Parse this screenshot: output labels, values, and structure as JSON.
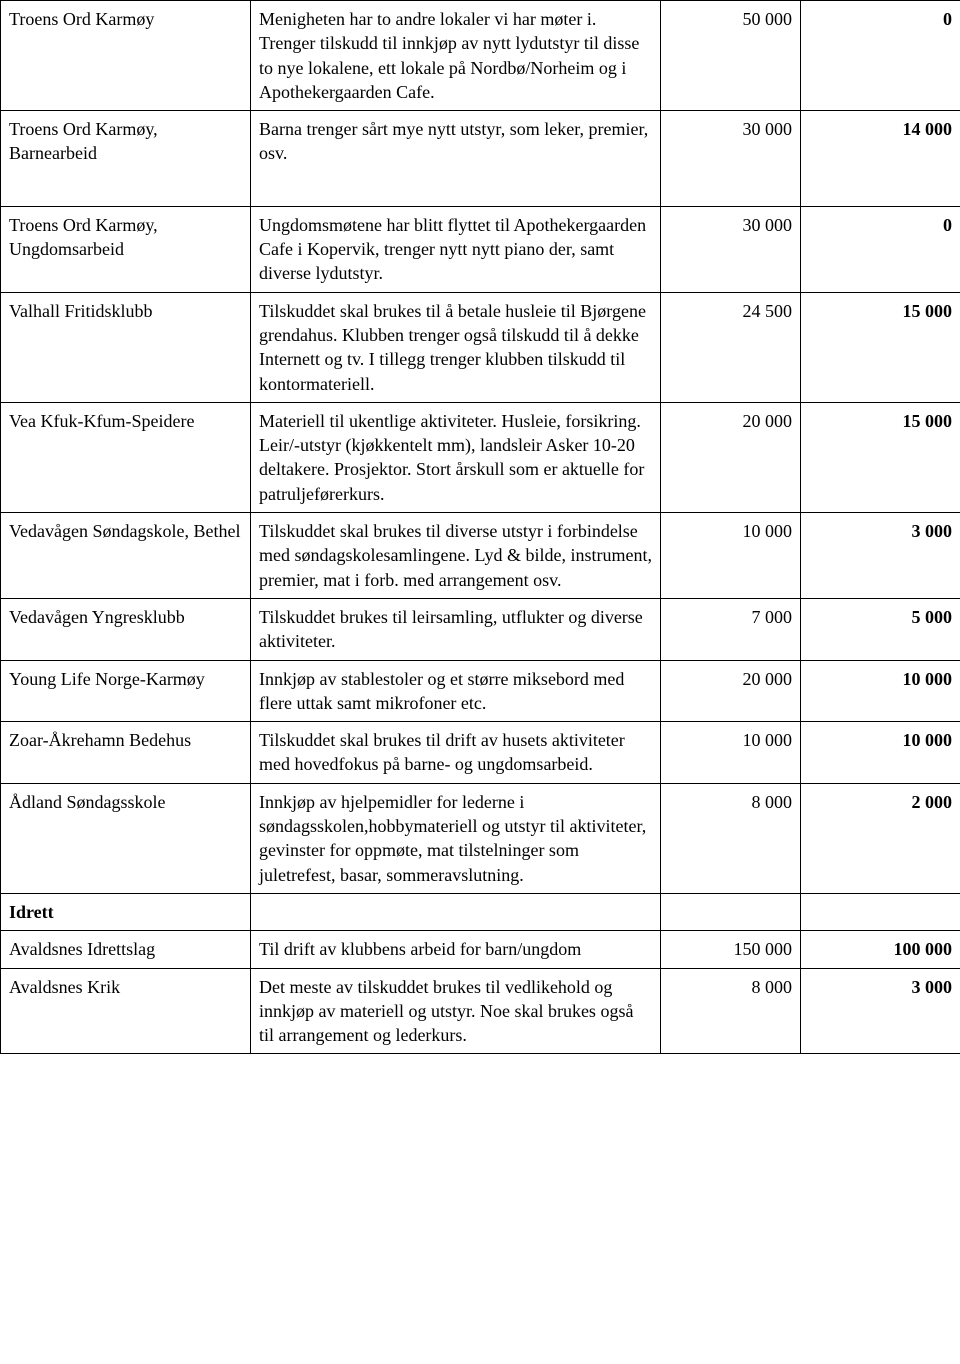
{
  "columns": {
    "name_width": 250,
    "desc_width": 410,
    "amt1_width": 140,
    "amt2_width": 160
  },
  "section_header": "Idrett",
  "rows": [
    {
      "name": "Troens Ord Karmøy",
      "desc": "Menigheten har to andre lokaler vi har møter i. Trenger tilskudd til innkjøp av nytt lydutstyr til disse to nye lokalene, ett lokale på Nordbø/Norheim og i Apothekergaarden Cafe.",
      "amt1": "50 000",
      "amt2": "0",
      "tall": true
    },
    {
      "name": "Troens Ord Karmøy, Barnearbeid",
      "desc": "Barna trenger sårt mye nytt utstyr, som leker, premier, osv.",
      "amt1": "30 000",
      "amt2": "14 000",
      "tall": true
    },
    {
      "name": "Troens Ord Karmøy, Ungdomsarbeid",
      "desc": "Ungdomsmøtene har blitt flyttet til Apothekergaarden Cafe i Kopervik, trenger nytt nytt piano der, samt diverse lydutstyr.",
      "amt1": "30 000",
      "amt2": "0"
    },
    {
      "name": "Valhall Fritidsklubb",
      "desc": "Tilskuddet skal brukes til å betale husleie til Bjørgene grendahus. Klubben trenger også tilskudd til å dekke Internett og tv. I tillegg trenger klubben tilskudd til kontormateriell.",
      "amt1": "24 500",
      "amt2": "15 000"
    },
    {
      "name": "Vea Kfuk-Kfum-Speidere",
      "desc": "Materiell til ukentlige aktiviteter. Husleie, forsikring. Leir/-utstyr (kjøkkentelt mm), landsleir Asker 10-20 deltakere. Prosjektor. Stort årskull som er aktuelle for patruljeførerkurs.",
      "amt1": "20 000",
      "amt2": "15 000"
    },
    {
      "name": "Vedavågen Søndagskole, Bethel",
      "desc": "Tilskuddet skal brukes til diverse utstyr i forbindelse med søndagskolesamlingene. Lyd & bilde, instrument, premier, mat i forb. med arrangement osv.",
      "amt1": "10 000",
      "amt2": "3 000"
    },
    {
      "name": "Vedavågen Yngresklubb",
      "desc": "Tilskuddet brukes til leirsamling, utflukter og diverse aktiviteter.",
      "amt1": "7 000",
      "amt2": "5 000"
    },
    {
      "name": "Young Life Norge-Karmøy",
      "desc": "Innkjøp av stablestoler og et større miksebord med flere uttak samt mikrofoner etc.",
      "amt1": "20 000",
      "amt2": "10 000"
    },
    {
      "name": "Zoar-Åkrehamn Bedehus",
      "desc": "Tilskuddet skal brukes til drift av husets aktiviteter med hovedfokus på barne- og ungdomsarbeid.",
      "amt1": "10 000",
      "amt2": "10 000"
    },
    {
      "name": "Ådland Søndagsskole",
      "desc": "Innkjøp av hjelpemidler for lederne i søndagsskolen,hobbymateriell og utstyr til aktiviteter, gevinster for oppmøte, mat tilstelninger som juletrefest, basar, sommeravslutning.",
      "amt1": "8 000",
      "amt2": "2 000"
    },
    {
      "section": true
    },
    {
      "name": "Avaldsnes Idrettslag",
      "desc": "Til drift av klubbens arbeid for barn/ungdom",
      "amt1": "150 000",
      "amt2": "100 000"
    },
    {
      "name": "Avaldsnes Krik",
      "desc": "Det meste av tilskuddet brukes til vedlikehold og innkjøp av materiell og utstyr. Noe skal brukes også til arrangement og lederkurs.",
      "amt1": "8 000",
      "amt2": "3 000"
    }
  ]
}
